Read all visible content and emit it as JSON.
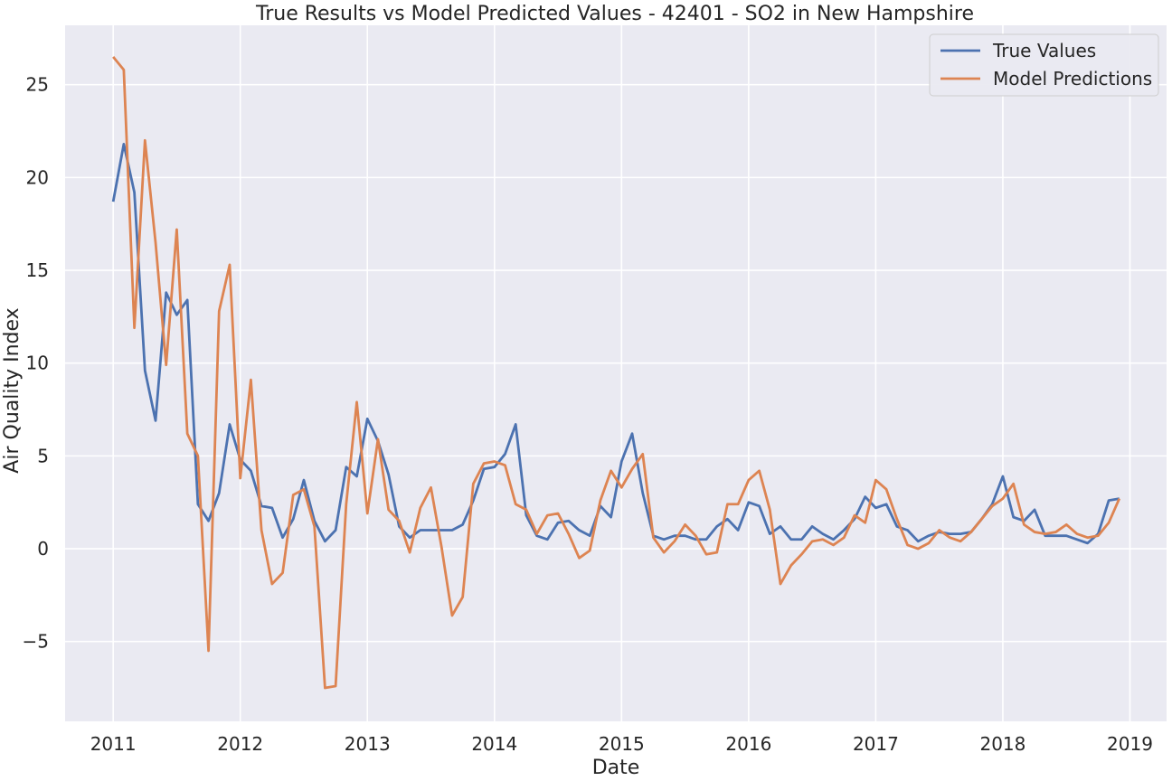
{
  "chart_data": {
    "type": "line",
    "title": "True Results vs Model Predicted Values - 42401 - SO2 in New Hampshire",
    "xlabel": "Date",
    "ylabel": "Air Quality Index",
    "x_start": "2011-01",
    "x_step": "1 month",
    "xlim": [
      "2010-08-15",
      "2019-04-15"
    ],
    "ylim": [
      -9.3,
      28.2
    ],
    "x_ticks": [
      "2011",
      "2012",
      "2013",
      "2014",
      "2015",
      "2016",
      "2017",
      "2018",
      "2019"
    ],
    "y_ticks": [
      -5,
      0,
      5,
      10,
      15,
      20,
      25
    ],
    "y_tick_labels": [
      "−5",
      "0",
      "5",
      "10",
      "15",
      "20",
      "25"
    ],
    "grid": true,
    "legend_position": "top-right",
    "series": [
      {
        "name": "True Values",
        "color": "#4c72b0",
        "values": [
          18.7,
          21.8,
          19.2,
          9.6,
          6.9,
          13.8,
          12.6,
          13.4,
          2.4,
          1.5,
          3.0,
          6.7,
          4.8,
          4.2,
          2.3,
          2.2,
          0.6,
          1.6,
          3.7,
          1.5,
          0.4,
          1.0,
          4.4,
          3.9,
          7.0,
          5.8,
          4.0,
          1.2,
          0.6,
          1.0,
          1.0,
          1.0,
          1.0,
          1.3,
          2.6,
          4.3,
          4.4,
          5.1,
          6.7,
          1.8,
          0.7,
          0.5,
          1.4,
          1.5,
          1.0,
          0.7,
          2.3,
          1.7,
          4.7,
          6.2,
          3.0,
          0.7,
          0.5,
          0.7,
          0.7,
          0.5,
          0.5,
          1.2,
          1.6,
          1.0,
          2.5,
          2.3,
          0.8,
          1.2,
          0.5,
          0.5,
          1.2,
          0.8,
          0.5,
          1.0,
          1.6,
          2.8,
          2.2,
          2.4,
          1.2,
          1.0,
          0.4,
          0.7,
          0.9,
          0.8,
          0.8,
          0.9,
          1.6,
          2.4,
          3.9,
          1.7,
          1.5,
          2.1,
          0.7,
          0.7,
          0.7,
          0.5,
          0.3,
          0.8,
          2.6,
          2.7
        ]
      },
      {
        "name": "Model Predictions",
        "color": "#dd8452",
        "values": [
          26.5,
          25.8,
          11.9,
          22.0,
          16.5,
          9.9,
          17.2,
          6.2,
          5.0,
          -5.5,
          12.8,
          15.3,
          3.8,
          9.1,
          1.0,
          -1.9,
          -1.3,
          2.9,
          3.2,
          1.2,
          -7.5,
          -7.4,
          2.4,
          7.9,
          1.9,
          5.9,
          2.1,
          1.5,
          -0.2,
          2.2,
          3.3,
          0.1,
          -3.6,
          -2.6,
          3.5,
          4.6,
          4.7,
          4.5,
          2.4,
          2.1,
          0.8,
          1.8,
          1.9,
          0.8,
          -0.5,
          -0.1,
          2.6,
          4.2,
          3.3,
          4.3,
          5.1,
          0.6,
          -0.2,
          0.4,
          1.3,
          0.7,
          -0.3,
          -0.2,
          2.4,
          2.4,
          3.7,
          4.2,
          2.1,
          -1.9,
          -0.9,
          -0.3,
          0.4,
          0.5,
          0.2,
          0.6,
          1.8,
          1.4,
          3.7,
          3.2,
          1.6,
          0.2,
          0.0,
          0.3,
          1.0,
          0.6,
          0.4,
          0.9,
          1.6,
          2.3,
          2.7,
          3.5,
          1.3,
          0.9,
          0.8,
          0.9,
          1.3,
          0.8,
          0.6,
          0.7,
          1.4,
          2.7
        ]
      }
    ]
  }
}
